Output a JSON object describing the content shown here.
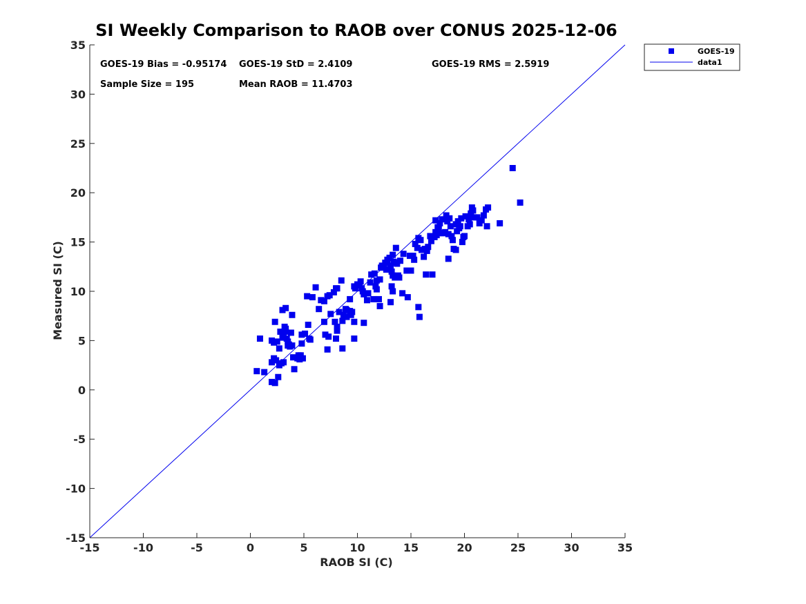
{
  "chart_data": {
    "type": "scatter",
    "title": "SI Weekly Comparison to RAOB over CONUS 2025-12-06",
    "xlabel": "RAOB SI (C)",
    "ylabel": "Measured SI (C)",
    "xlim": [
      -15,
      35
    ],
    "ylim": [
      -15,
      35
    ],
    "xticks": [
      "-15",
      "-10",
      "-5",
      "0",
      "5",
      "10",
      "15",
      "20",
      "25",
      "30",
      "35"
    ],
    "yticks": [
      "-15",
      "-10",
      "-5",
      "0",
      "5",
      "10",
      "15",
      "20",
      "25",
      "30",
      "35"
    ],
    "grid": false,
    "legend_position": "outside top-right",
    "stats": {
      "bias": "GOES-19 Bias = -0.95174",
      "std": "GOES-19 StD = 2.4109",
      "rms": "GOES-19 RMS = 2.5919",
      "sample": "Sample Size = 195",
      "mean": "Mean RAOB = 11.4703"
    },
    "series": [
      {
        "name": "GOES-19",
        "kind": "scatter",
        "marker": "square",
        "color": "#0000ee",
        "points": [
          [
            0.6,
            1.9
          ],
          [
            0.9,
            5.2
          ],
          [
            1.3,
            1.8
          ],
          [
            2.0,
            0.8
          ],
          [
            2.3,
            0.7
          ],
          [
            2.0,
            2.8
          ],
          [
            2.2,
            3.2
          ],
          [
            2.4,
            3.0
          ],
          [
            2.6,
            1.3
          ],
          [
            2.7,
            2.5
          ],
          [
            2.2,
            4.8
          ],
          [
            2.3,
            6.9
          ],
          [
            2.0,
            5.0
          ],
          [
            2.7,
            4.2
          ],
          [
            2.8,
            5.9
          ],
          [
            3.0,
            8.1
          ],
          [
            3.3,
            8.3
          ],
          [
            3.2,
            6.4
          ],
          [
            3.1,
            5.7
          ],
          [
            3.0,
            5.3
          ],
          [
            3.3,
            5.9
          ],
          [
            3.4,
            5.2
          ],
          [
            3.5,
            4.9
          ],
          [
            3.6,
            4.6
          ],
          [
            3.7,
            4.4
          ],
          [
            3.3,
            6.2
          ],
          [
            3.8,
            5.8
          ],
          [
            3.9,
            4.5
          ],
          [
            4.0,
            3.3
          ],
          [
            4.1,
            2.1
          ],
          [
            3.9,
            7.6
          ],
          [
            3.1,
            2.8
          ],
          [
            2.9,
            2.7
          ],
          [
            4.4,
            3.2
          ],
          [
            4.6,
            3.1
          ],
          [
            4.7,
            3.5
          ],
          [
            4.9,
            3.2
          ],
          [
            4.8,
            4.7
          ],
          [
            4.8,
            5.6
          ],
          [
            5.1,
            5.7
          ],
          [
            5.3,
            9.5
          ],
          [
            5.5,
            5.2
          ],
          [
            5.4,
            6.6
          ],
          [
            5.6,
            5.1
          ],
          [
            5.8,
            9.4
          ],
          [
            6.1,
            10.4
          ],
          [
            6.4,
            8.2
          ],
          [
            6.9,
            6.9
          ],
          [
            7.0,
            5.6
          ],
          [
            7.2,
            4.1
          ],
          [
            7.3,
            5.4
          ],
          [
            6.9,
            9.0
          ],
          [
            7.2,
            9.5
          ],
          [
            7.4,
            9.6
          ],
          [
            7.5,
            7.7
          ],
          [
            7.9,
            6.9
          ],
          [
            8.1,
            6.4
          ],
          [
            8.1,
            6.0
          ],
          [
            8.0,
            5.2
          ],
          [
            7.8,
            9.9
          ],
          [
            8.0,
            10.3
          ],
          [
            8.1,
            10.3
          ],
          [
            8.5,
            11.1
          ],
          [
            8.6,
            4.2
          ],
          [
            8.7,
            7.6
          ],
          [
            8.9,
            8.2
          ],
          [
            8.6,
            7.0
          ],
          [
            9.0,
            7.4
          ],
          [
            9.3,
            8.0
          ],
          [
            9.5,
            7.9
          ],
          [
            9.4,
            7.6
          ],
          [
            9.3,
            9.2
          ],
          [
            9.7,
            10.5
          ],
          [
            9.8,
            10.3
          ],
          [
            9.7,
            6.9
          ],
          [
            9.7,
            5.2
          ],
          [
            10.2,
            10.6
          ],
          [
            10.4,
            10.3
          ],
          [
            10.5,
            10.0
          ],
          [
            10.6,
            9.7
          ],
          [
            10.3,
            11.0
          ],
          [
            10.6,
            6.8
          ],
          [
            10.9,
            9.1
          ],
          [
            11.2,
            10.9
          ],
          [
            11.3,
            11.7
          ],
          [
            11.6,
            11.8
          ],
          [
            11.5,
            9.2
          ],
          [
            11.8,
            10.2
          ],
          [
            11.7,
            10.5
          ],
          [
            11.8,
            11.1
          ],
          [
            12.0,
            9.2
          ],
          [
            12.1,
            11.2
          ],
          [
            12.2,
            12.4
          ],
          [
            12.1,
            8.5
          ],
          [
            12.5,
            12.5
          ],
          [
            12.6,
            12.9
          ],
          [
            12.8,
            13.2
          ],
          [
            13.0,
            13.4
          ],
          [
            13.2,
            12.0
          ],
          [
            13.1,
            12.6
          ],
          [
            13.3,
            13.7
          ],
          [
            13.4,
            13.0
          ],
          [
            13.6,
            12.9
          ],
          [
            13.5,
            11.4
          ],
          [
            13.7,
            12.8
          ],
          [
            13.8,
            11.6
          ],
          [
            13.3,
            10.0
          ],
          [
            13.2,
            10.5
          ],
          [
            13.1,
            8.9
          ],
          [
            13.9,
            11.4
          ],
          [
            14.2,
            9.8
          ],
          [
            14.3,
            13.8
          ],
          [
            13.6,
            14.4
          ],
          [
            13.3,
            11.6
          ],
          [
            14.6,
            12.1
          ],
          [
            14.7,
            9.4
          ],
          [
            15.0,
            12.1
          ],
          [
            14.9,
            13.6
          ],
          [
            15.2,
            13.6
          ],
          [
            15.4,
            14.8
          ],
          [
            15.7,
            15.4
          ],
          [
            15.6,
            14.4
          ],
          [
            15.9,
            15.2
          ],
          [
            15.7,
            8.4
          ],
          [
            15.8,
            7.4
          ],
          [
            16.2,
            13.5
          ],
          [
            16.5,
            14.1
          ],
          [
            16.4,
            11.7
          ],
          [
            16.3,
            14.3
          ],
          [
            16.6,
            14.5
          ],
          [
            16.8,
            15.6
          ],
          [
            16.9,
            15.1
          ],
          [
            17.0,
            11.7
          ],
          [
            17.2,
            15.5
          ],
          [
            17.4,
            15.7
          ],
          [
            17.3,
            16.0
          ],
          [
            17.5,
            16.5
          ],
          [
            17.3,
            17.2
          ],
          [
            17.6,
            16.3
          ],
          [
            17.7,
            16.9
          ],
          [
            17.9,
            17.3
          ],
          [
            18.0,
            15.9
          ],
          [
            18.2,
            16.0
          ],
          [
            18.3,
            17.7
          ],
          [
            18.5,
            13.3
          ],
          [
            18.5,
            15.8
          ],
          [
            18.6,
            17.4
          ],
          [
            18.7,
            16.6
          ],
          [
            18.8,
            15.6
          ],
          [
            18.9,
            15.2
          ],
          [
            19.0,
            14.3
          ],
          [
            19.2,
            14.2
          ],
          [
            19.2,
            16.8
          ],
          [
            19.3,
            16.1
          ],
          [
            19.5,
            16.4
          ],
          [
            19.4,
            17.1
          ],
          [
            19.7,
            17.4
          ],
          [
            19.8,
            15.0
          ],
          [
            19.9,
            15.5
          ],
          [
            20.0,
            15.6
          ],
          [
            20.1,
            17.6
          ],
          [
            20.3,
            16.6
          ],
          [
            20.5,
            16.8
          ],
          [
            20.6,
            17.8
          ],
          [
            20.7,
            18.5
          ],
          [
            20.8,
            18.2
          ],
          [
            20.9,
            17.5
          ],
          [
            20.6,
            17.9
          ],
          [
            21.2,
            17.5
          ],
          [
            21.4,
            16.9
          ],
          [
            21.6,
            17.2
          ],
          [
            21.8,
            17.7
          ],
          [
            22.0,
            18.3
          ],
          [
            22.1,
            16.6
          ],
          [
            22.2,
            18.5
          ],
          [
            23.3,
            16.9
          ],
          [
            24.5,
            22.5
          ],
          [
            25.2,
            19.0
          ],
          [
            9.0,
            8.1
          ],
          [
            8.3,
            7.9
          ],
          [
            10.0,
            10.7
          ],
          [
            11.0,
            9.8
          ],
          [
            12.7,
            12.2
          ],
          [
            14.0,
            13.1
          ],
          [
            16.0,
            14.2
          ],
          [
            17.8,
            15.9
          ],
          [
            18.4,
            17.1
          ],
          [
            19.6,
            16.6
          ],
          [
            20.4,
            17.3
          ],
          [
            12.3,
            12.6
          ],
          [
            6.6,
            9.1
          ],
          [
            4.5,
            3.5
          ],
          [
            3.5,
            4.5
          ],
          [
            2.5,
            4.9
          ],
          [
            15.3,
            13.2
          ]
        ]
      },
      {
        "name": "data1",
        "kind": "line",
        "color": "#0000ee",
        "x": [
          -15,
          35
        ],
        "y": [
          -15,
          35
        ]
      }
    ]
  }
}
